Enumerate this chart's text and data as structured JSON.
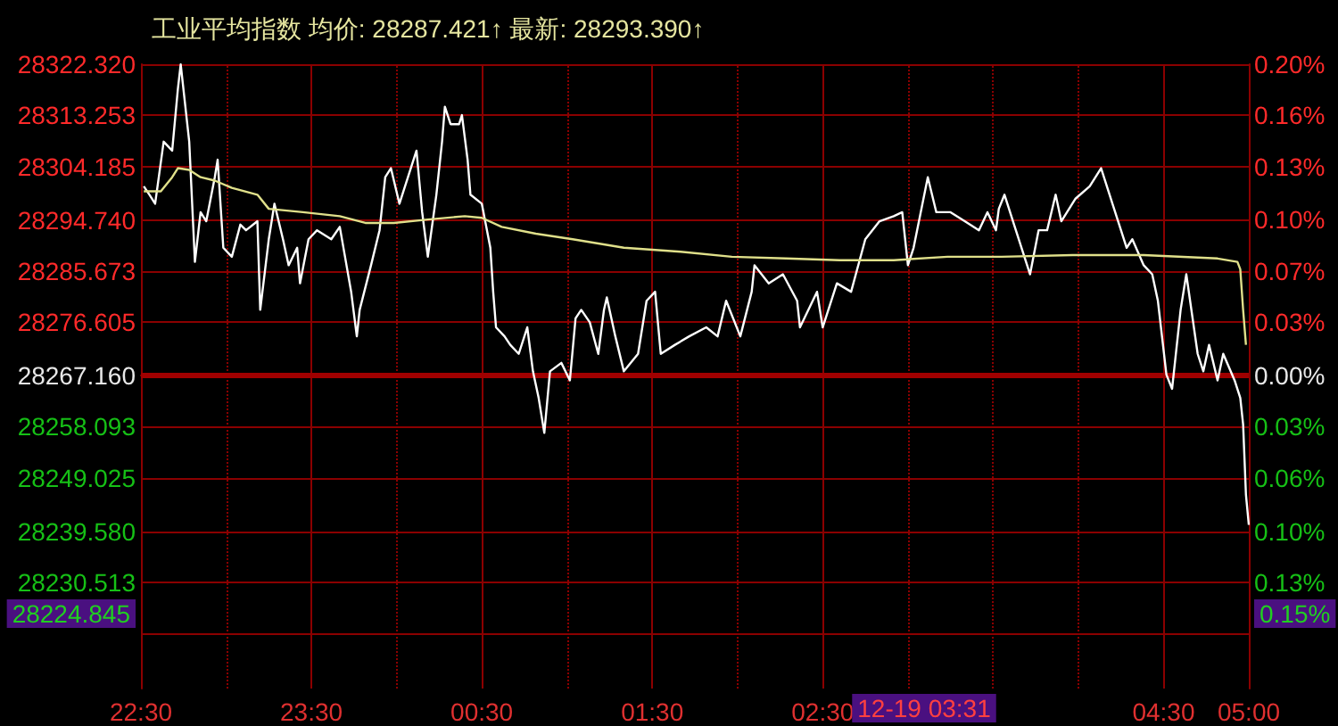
{
  "chart_data": {
    "type": "line",
    "title": "工业平均指数 均价: 28287.421↑ 最新: 28293.390↑",
    "series": [
      {
        "color": "#ffffff",
        "x": [
          "--12-18T22:31",
          "--12-18T22:33",
          "--12-18T22:35",
          "--12-18T22:38",
          "--12-18T22:41",
          "--12-18T22:43",
          "--12-18T22:44",
          "--12-18T22:47",
          "--12-18T22:49",
          "--12-18T22:51",
          "--12-18T22:53",
          "--12-18T22:56",
          "--12-18T22:57",
          "--12-18T22:59",
          "--12-18T23:02",
          "--12-18T23:05",
          "--12-18T23:07",
          "--12-18T23:11",
          "--12-18T23:12",
          "--12-18T23:15",
          "--12-18T23:17",
          "--12-18T23:20",
          "--12-18T23:22",
          "--12-18T23:25",
          "--12-18T23:26",
          "--12-18T23:29",
          "--12-18T23:32",
          "--12-18T23:37",
          "--12-18T23:40",
          "--12-18T23:44",
          "--12-18T23:46",
          "--12-18T23:47",
          "--12-18T23:51",
          "--12-18T23:54",
          "--12-18T23:56",
          "--12-18T23:58",
          "--12-19T00:01",
          "--12-19T00:04",
          "--12-19T00:07",
          "--12-19T00:09",
          "--12-19T00:11",
          "--12-19T00:14",
          "--12-19T00:16",
          "--12-19T00:17",
          "--12-19T00:19",
          "--12-19T00:22",
          "--12-19T00:23",
          "--12-19T00:25",
          "--12-19T00:26",
          "--12-19T00:30",
          "--12-19T00:33",
          "--12-19T00:34",
          "--12-19T00:35",
          "--12-19T00:38",
          "--12-19T00:40",
          "--12-19T00:43",
          "--12-19T00:46",
          "--12-19T00:48",
          "--12-19T00:50",
          "--12-19T00:52",
          "--12-19T00:54",
          "--12-19T00:58",
          "--12-19T01:01",
          "--12-19T01:03",
          "--12-19T01:05",
          "--12-19T01:08",
          "--12-19T01:11",
          "--12-19T01:13",
          "--12-19T01:14",
          "--12-19T01:17",
          "--12-19T01:20",
          "--12-19T01:25",
          "--12-19T01:28",
          "--12-19T01:31",
          "--12-19T01:33",
          "--12-19T01:38",
          "--12-19T01:43",
          "--12-19T01:49",
          "--12-19T01:53",
          "--12-19T01:56",
          "--12-19T02:01",
          "--12-19T02:05",
          "--12-19T02:06",
          "--12-19T02:11",
          "--12-19T02:16",
          "--12-19T02:21",
          "--12-19T02:22",
          "--12-19T02:28",
          "--12-19T02:30",
          "--12-19T02:35",
          "--12-19T02:40",
          "--12-19T02:45",
          "--12-19T02:50",
          "--12-19T02:55",
          "--12-19T02:58",
          "--12-19T03:00",
          "--12-19T03:02",
          "--12-19T03:07",
          "--12-19T03:10",
          "--12-19T03:15",
          "--12-19T03:20",
          "--12-19T03:25",
          "--12-19T03:28",
          "--12-19T03:31",
          "--12-19T03:32",
          "--12-19T03:34",
          "--12-19T03:38",
          "--12-19T03:41",
          "--12-19T03:43",
          "--12-19T03:46",
          "--12-19T03:49",
          "--12-19T03:52",
          "--12-19T03:54",
          "--12-19T03:59",
          "--12-19T04:04",
          "--12-19T04:08",
          "--12-19T04:12",
          "--12-19T04:17",
          "--12-19T04:19",
          "--12-19T04:23",
          "--12-19T04:26",
          "--12-19T04:28",
          "--12-19T04:31",
          "--12-19T04:33",
          "--12-19T04:36",
          "--12-19T04:38",
          "--12-19T04:42",
          "--12-19T04:44",
          "--12-19T04:46",
          "--12-19T04:49",
          "--12-19T04:51",
          "--12-19T04:55",
          "--12-19T04:57",
          "--12-19T04:58",
          "--12-19T04:59",
          "--12-19T05:00"
        ],
        "values": [
          28300.7,
          28299.2,
          28297.6,
          28308.6,
          28307.0,
          28317.9,
          28322.3,
          28308.6,
          28287.3,
          28296.1,
          28294.5,
          28302.3,
          28305.4,
          28289.8,
          28288.2,
          28293.9,
          28292.9,
          28294.5,
          28278.8,
          28291.3,
          28297.6,
          28291.3,
          28286.7,
          28289.8,
          28283.5,
          28291.3,
          28292.9,
          28291.3,
          28293.5,
          28282.0,
          28274.1,
          28278.8,
          28286.7,
          28292.9,
          28302.3,
          28303.9,
          28297.6,
          28302.3,
          28307.0,
          28296.1,
          28288.2,
          28299.2,
          28308.6,
          28314.8,
          28311.7,
          28311.7,
          28313.3,
          28305.4,
          28299.2,
          28297.6,
          28289.8,
          28282.0,
          28275.7,
          28274.1,
          28272.6,
          28271.0,
          28275.7,
          28267.9,
          28263.2,
          28257.0,
          28267.9,
          28269.4,
          28266.3,
          28277.3,
          28278.8,
          28276.6,
          28271.0,
          28278.8,
          28281.0,
          28274.1,
          28267.9,
          28271.0,
          28280.4,
          28282.0,
          28271.0,
          28272.6,
          28274.1,
          28275.7,
          28274.1,
          28280.4,
          28274.1,
          28282.0,
          28286.7,
          28283.5,
          28285.1,
          28280.4,
          28275.7,
          28282.0,
          28275.7,
          28283.5,
          28282.0,
          28291.3,
          28294.5,
          28295.4,
          28296.1,
          28286.7,
          28289.8,
          28302.3,
          28296.1,
          28296.1,
          28294.5,
          28292.9,
          28296.1,
          28292.9,
          28296.7,
          28299.2,
          28292.9,
          28288.2,
          28285.1,
          28292.9,
          28292.9,
          28299.2,
          28294.5,
          28298.5,
          28300.7,
          28303.9,
          28297.6,
          28289.8,
          28291.3,
          28286.7,
          28285.1,
          28280.4,
          28267.3,
          28264.8,
          28278.8,
          28285.1,
          28271.0,
          28267.9,
          28272.6,
          28266.3,
          28271.0,
          28266.3,
          28263.2,
          28258.5,
          28246.0,
          28240.7
        ]
      },
      {
        "color": "#e0e08a",
        "x": [
          "--12-18T22:31",
          "--12-18T22:37",
          "--12-18T22:41",
          "--12-18T22:43",
          "--12-18T22:47",
          "--12-18T22:51",
          "--12-18T22:56",
          "--12-18T23:02",
          "--12-18T23:11",
          "--12-18T23:15",
          "--12-18T23:27",
          "--12-18T23:40",
          "--12-18T23:49",
          "--12-18T23:59",
          "--12-19T00:11",
          "--12-19T00:24",
          "--12-19T00:30",
          "--12-19T00:37",
          "--12-19T00:49",
          "--12-19T01:02",
          "--12-19T01:20",
          "--12-19T01:40",
          "--12-19T01:58",
          "--12-19T02:17",
          "--12-19T02:36",
          "--12-19T02:55",
          "--12-19T03:14",
          "--12-19T03:33",
          "--12-19T03:58",
          "--12-19T04:23",
          "--12-19T04:49",
          "--12-19T04:56",
          "--12-19T04:57",
          "--12-19T04:58",
          "--12-19T04:59"
        ],
        "values": [
          28299.8,
          28299.8,
          28302.3,
          28303.9,
          28303.6,
          28302.3,
          28301.7,
          28300.4,
          28299.2,
          28296.7,
          28296.1,
          28295.4,
          28294.2,
          28294.2,
          28294.8,
          28295.4,
          28295.1,
          28293.5,
          28292.3,
          28291.3,
          28289.8,
          28289.1,
          28288.2,
          28287.9,
          28287.6,
          28287.6,
          28288.2,
          28288.2,
          28288.5,
          28288.5,
          28287.9,
          28287.3,
          28286.0,
          28278.8,
          28272.6
        ]
      }
    ],
    "xlim": [
      "--12-18T22:30",
      "--12-19T05:00"
    ],
    "xticks": [
      {
        "value": "--12-18T22:30",
        "label": "22:30"
      },
      {
        "value": "--12-18T23:00",
        "label": null
      },
      {
        "value": "--12-18T23:30",
        "label": "23:30"
      },
      {
        "value": "--12-19T00:00",
        "label": null
      },
      {
        "value": "--12-19T00:30",
        "label": "00:30"
      },
      {
        "value": "--12-19T01:00",
        "label": null
      },
      {
        "value": "--12-19T01:30",
        "label": "01:30"
      },
      {
        "value": "--12-19T02:00",
        "label": null
      },
      {
        "value": "--12-19T02:30",
        "label": "02:30"
      },
      {
        "value": "--12-19T03:00",
        "label": null
      },
      {
        "value": "--12-19T03:30",
        "label": null
      },
      {
        "value": "--12-19T04:00",
        "label": null
      },
      {
        "value": "--12-19T04:30",
        "label": "04:30"
      },
      {
        "value": "--12-19T05:00",
        "label": "05:00"
      }
    ],
    "ylim": [
      28211.7,
      28322.32
    ],
    "yticks": [
      {
        "value": 28322.32,
        "label": "28322.320"
      },
      {
        "value": 28313.253,
        "label": "28313.253"
      },
      {
        "value": 28304.185,
        "label": "28304.185"
      },
      {
        "value": 28294.74,
        "label": "28294.740"
      },
      {
        "value": 28285.673,
        "label": "28285.673"
      },
      {
        "value": 28276.605,
        "label": "28276.605"
      },
      {
        "value": 28267.16,
        "label": "28267.160"
      },
      {
        "value": 28258.093,
        "label": "28258.093"
      },
      {
        "value": 28249.025,
        "label": "28249.025"
      },
      {
        "value": 28239.58,
        "label": "28239.580"
      },
      {
        "value": 28230.513,
        "label": "28230.513"
      },
      {
        "value": 28221.445,
        "label": null
      }
    ],
    "y2lim": [
      -0.1962,
      0.1951
    ],
    "y2ticks": [
      {
        "value": 0.1951,
        "label": "0.20%"
      },
      {
        "value": 0.1631,
        "label": "0.16%"
      },
      {
        "value": 0.131,
        "label": "0.13%"
      },
      {
        "value": 0.0976,
        "label": "0.10%"
      },
      {
        "value": 0.0655,
        "label": "0.07%"
      },
      {
        "value": 0.0334,
        "label": "0.03%"
      },
      {
        "value": 0,
        "label": "0.00%"
      },
      {
        "value": -0.0321,
        "label": "0.03%"
      },
      {
        "value": -0.0642,
        "label": "0.06%"
      },
      {
        "value": -0.0976,
        "label": "0.10%"
      },
      {
        "value": -0.1296,
        "label": "0.13%"
      },
      {
        "value": -0.1617,
        "label": null
      }
    ],
    "ref_lines": [
      {
        "axis": "y",
        "value": 28267.16,
        "color": "#a00000"
      }
    ],
    "annotations": [
      "28224.845",
      "0.15%",
      "12-19 03:31"
    ],
    "grid": true,
    "marker": "none",
    "line_style": "solid"
  }
}
